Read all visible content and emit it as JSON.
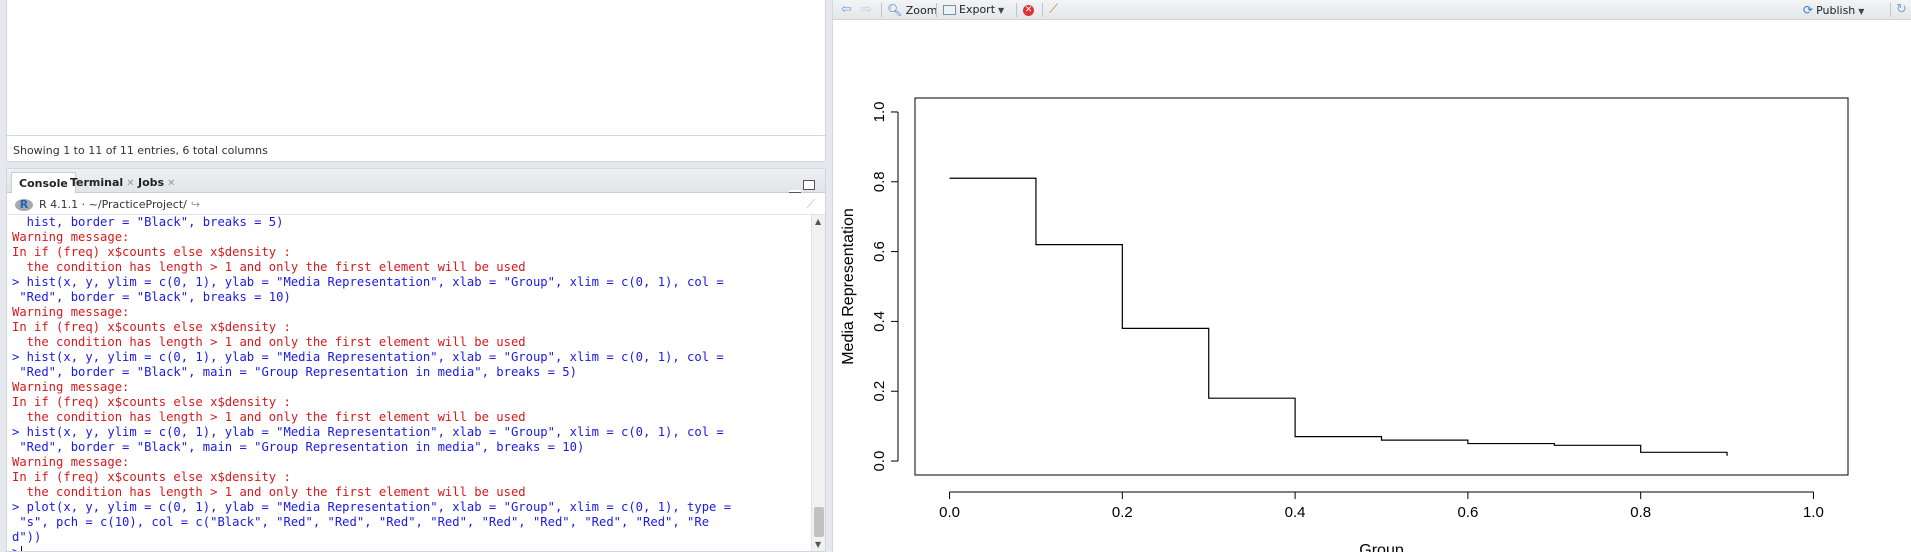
{
  "data_viewer": {
    "status": "Showing 1 to 11 of 11 entries, 6 total columns"
  },
  "console_tabs": [
    {
      "label": "Console",
      "closable": false
    },
    {
      "label": "Terminal",
      "closable": true
    },
    {
      "label": "Jobs",
      "closable": true
    }
  ],
  "console_header": {
    "r_logo": "R",
    "version": "R 4.1.1",
    "separator": "·",
    "path": "~/PracticeProject/"
  },
  "console_lines": [
    {
      "t": "cmd",
      "s": "  hist, border = \"Black\", breaks = 5)"
    },
    {
      "t": "warn",
      "s": "Warning message:"
    },
    {
      "t": "warn",
      "s": "In if (freq) x$counts else x$density :"
    },
    {
      "t": "warn",
      "s": "  the condition has length > 1 and only the first element will be used"
    },
    {
      "t": "cmd",
      "s": "> hist(x, y, ylim = c(0, 1), ylab = \"Media Representation\", xlab = \"Group\", xlim = c(0, 1), col ="
    },
    {
      "t": "cmd",
      "s": " \"Red\", border = \"Black\", breaks = 10)"
    },
    {
      "t": "warn",
      "s": "Warning message:"
    },
    {
      "t": "warn",
      "s": "In if (freq) x$counts else x$density :"
    },
    {
      "t": "warn",
      "s": "  the condition has length > 1 and only the first element will be used"
    },
    {
      "t": "cmd",
      "s": "> hist(x, y, ylim = c(0, 1), ylab = \"Media Representation\", xlab = \"Group\", xlim = c(0, 1), col ="
    },
    {
      "t": "cmd",
      "s": " \"Red\", border = \"Black\", main = \"Group Representation in media\", breaks = 5)"
    },
    {
      "t": "warn",
      "s": "Warning message:"
    },
    {
      "t": "warn",
      "s": "In if (freq) x$counts else x$density :"
    },
    {
      "t": "warn",
      "s": "  the condition has length > 1 and only the first element will be used"
    },
    {
      "t": "cmd",
      "s": "> hist(x, y, ylim = c(0, 1), ylab = \"Media Representation\", xlab = \"Group\", xlim = c(0, 1), col ="
    },
    {
      "t": "cmd",
      "s": " \"Red\", border = \"Black\", main = \"Group Representation in media\", breaks = 10)"
    },
    {
      "t": "warn",
      "s": "Warning message:"
    },
    {
      "t": "warn",
      "s": "In if (freq) x$counts else x$density :"
    },
    {
      "t": "warn",
      "s": "  the condition has length > 1 and only the first element will be used"
    },
    {
      "t": "cmd",
      "s": "> plot(x, y, ylim = c(0, 1), ylab = \"Media Representation\", xlab = \"Group\", xlim = c(0, 1), type ="
    },
    {
      "t": "cmd",
      "s": " \"s\", pch = c(10), col = c(\"Black\", \"Red\", \"Red\", \"Red\", \"Red\", \"Red\", \"Red\", \"Red\", \"Red\", \"Re"
    },
    {
      "t": "cmd",
      "s": "d\"))"
    }
  ],
  "console_prompt": ">",
  "plot_toolbar": {
    "zoom_label": "Zoom",
    "export_label": "Export",
    "publish_label": "Publish"
  },
  "chart_data": {
    "type": "line",
    "style": "step",
    "title": "",
    "xlabel": "Group",
    "ylabel": "Media Representation",
    "xlim": [
      0,
      1
    ],
    "ylim": [
      0,
      1
    ],
    "x_ticks": [
      "0.0",
      "0.2",
      "0.4",
      "0.6",
      "0.8",
      "1.0"
    ],
    "y_ticks": [
      "0.0",
      "0.2",
      "0.4",
      "0.6",
      "0.8",
      "1.0"
    ],
    "x_tick_values": [
      0,
      0.2,
      0.4,
      0.6,
      0.8,
      1.0
    ],
    "y_tick_values": [
      0,
      0.2,
      0.4,
      0.6,
      0.8,
      1.0
    ],
    "x": [
      0.0,
      0.1,
      0.2,
      0.3,
      0.4,
      0.5,
      0.6,
      0.7,
      0.8,
      0.9
    ],
    "y": [
      0.81,
      0.62,
      0.38,
      0.18,
      0.07,
      0.06,
      0.05,
      0.045,
      0.025,
      0.015
    ],
    "line_color": "#000000",
    "grid": false
  }
}
